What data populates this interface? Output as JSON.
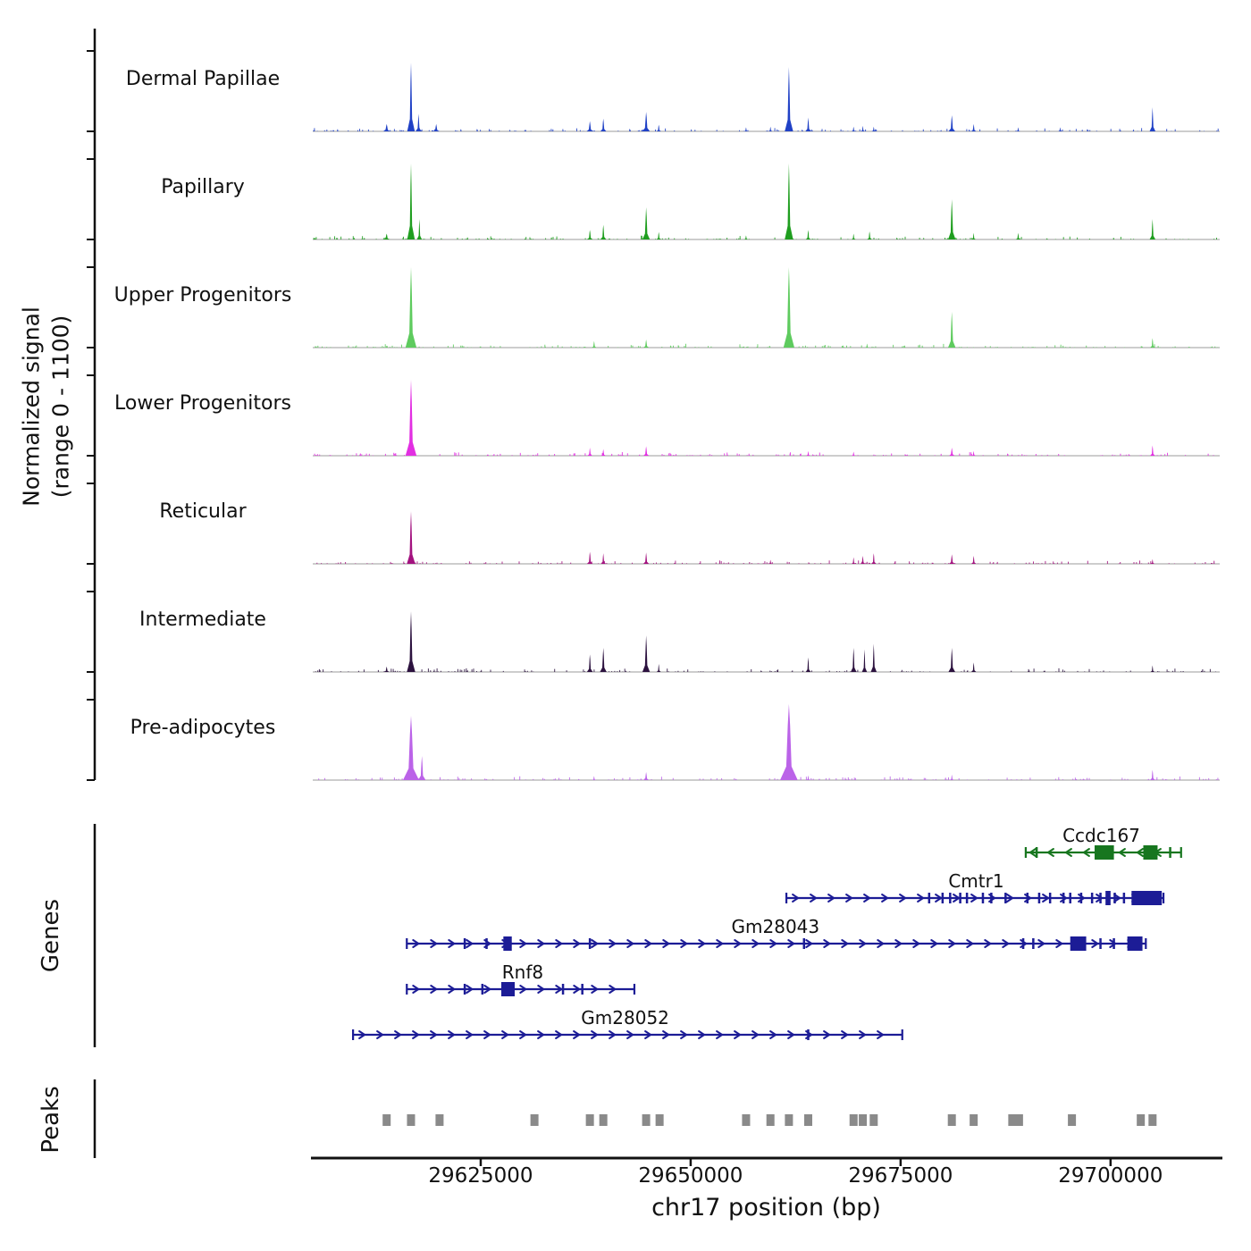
{
  "figure": {
    "ylabel_line1": "Normalized signal",
    "ylabel_line2": "(range 0 - 1100)",
    "xlabel": "chr17 position (bp)",
    "genes_label": "Genes",
    "peaks_label": "Peaks"
  },
  "chart_data": {
    "type": "area",
    "region": {
      "chrom": "chr17",
      "xmin": 29605000,
      "xmax": 29713000
    },
    "signal_range": [
      0,
      1100
    ],
    "xticks": [
      {
        "pos": 29625000,
        "label": "29625000"
      },
      {
        "pos": 29650000,
        "label": "29650000"
      },
      {
        "pos": 29675000,
        "label": "29675000"
      },
      {
        "pos": 29700000,
        "label": "29700000"
      }
    ],
    "tracks": [
      {
        "label": "Dermal Papillae",
        "color": "#2041c6",
        "peaks": [
          [
            29613800,
            100,
            900
          ],
          [
            29616700,
            940,
            900
          ],
          [
            29617600,
            240,
            700
          ],
          [
            29619700,
            100,
            800
          ],
          [
            29638000,
            140,
            800
          ],
          [
            29639600,
            175,
            700
          ],
          [
            29644700,
            265,
            900
          ],
          [
            29646200,
            90,
            600
          ],
          [
            29656600,
            55,
            500
          ],
          [
            29659500,
            65,
            500
          ],
          [
            29661700,
            880,
            1000
          ],
          [
            29664000,
            190,
            700
          ],
          [
            29669400,
            65,
            500
          ],
          [
            29670500,
            75,
            500
          ],
          [
            29671800,
            65,
            500
          ],
          [
            29681100,
            220,
            800
          ],
          [
            29683700,
            100,
            600
          ],
          [
            29689000,
            55,
            500
          ],
          [
            29694000,
            55,
            500
          ],
          [
            29705000,
            330,
            700
          ]
        ]
      },
      {
        "label": "Papillary",
        "color": "#1f9e1f",
        "peaks": [
          [
            29613800,
            80,
            800
          ],
          [
            29616700,
            1040,
            900
          ],
          [
            29617700,
            280,
            600
          ],
          [
            29638000,
            130,
            700
          ],
          [
            29639600,
            200,
            700
          ],
          [
            29644700,
            440,
            900
          ],
          [
            29646200,
            100,
            600
          ],
          [
            29656600,
            55,
            500
          ],
          [
            29661700,
            1040,
            1000
          ],
          [
            29664000,
            130,
            600
          ],
          [
            29669400,
            80,
            500
          ],
          [
            29671300,
            110,
            600
          ],
          [
            29681100,
            550,
            900
          ],
          [
            29683700,
            90,
            500
          ],
          [
            29689000,
            90,
            600
          ],
          [
            29705000,
            280,
            700
          ]
        ]
      },
      {
        "label": "Upper Progenitors",
        "color": "#5ecb5e",
        "peaks": [
          [
            29616700,
            1100,
            1300
          ],
          [
            29638500,
            90,
            600
          ],
          [
            29644700,
            110,
            700
          ],
          [
            29661700,
            1100,
            1300
          ],
          [
            29671000,
            55,
            500
          ],
          [
            29681100,
            490,
            900
          ],
          [
            29705000,
            130,
            600
          ]
        ]
      },
      {
        "label": "Lower Progenitors",
        "color": "#e22fe2",
        "peaks": [
          [
            29616700,
            1040,
            1300
          ],
          [
            29638000,
            110,
            600
          ],
          [
            29639600,
            90,
            600
          ],
          [
            29644700,
            130,
            700
          ],
          [
            29664000,
            65,
            500
          ],
          [
            29669400,
            55,
            500
          ],
          [
            29681100,
            110,
            700
          ],
          [
            29683700,
            65,
            500
          ],
          [
            29705000,
            140,
            600
          ]
        ]
      },
      {
        "label": "Reticular",
        "color": "#a3127f",
        "peaks": [
          [
            29616700,
            720,
            1000
          ],
          [
            29638000,
            165,
            700
          ],
          [
            29639600,
            145,
            600
          ],
          [
            29644700,
            155,
            700
          ],
          [
            29659500,
            55,
            500
          ],
          [
            29669400,
            90,
            500
          ],
          [
            29670500,
            110,
            600
          ],
          [
            29671800,
            145,
            600
          ],
          [
            29681100,
            130,
            700
          ],
          [
            29683700,
            110,
            600
          ],
          [
            29705000,
            65,
            500
          ]
        ]
      },
      {
        "label": "Intermediate",
        "color": "#2c123f",
        "peaks": [
          [
            29613800,
            75,
            700
          ],
          [
            29616700,
            830,
            1000
          ],
          [
            29638000,
            240,
            700
          ],
          [
            29639600,
            330,
            800
          ],
          [
            29644700,
            500,
            900
          ],
          [
            29646200,
            110,
            500
          ],
          [
            29664000,
            200,
            600
          ],
          [
            29669400,
            330,
            700
          ],
          [
            29670700,
            310,
            600
          ],
          [
            29671800,
            385,
            700
          ],
          [
            29681100,
            330,
            800
          ],
          [
            29683700,
            130,
            600
          ],
          [
            29705000,
            90,
            500
          ]
        ]
      },
      {
        "label": "Pre-adipocytes",
        "color": "#bb63e8",
        "peaks": [
          [
            29616700,
            880,
            1900
          ],
          [
            29618000,
            330,
            900
          ],
          [
            29638500,
            55,
            500
          ],
          [
            29644700,
            110,
            700
          ],
          [
            29661700,
            1040,
            2100
          ],
          [
            29664000,
            65,
            500
          ],
          [
            29681100,
            75,
            500
          ],
          [
            29705000,
            140,
            600
          ]
        ]
      }
    ],
    "genes": [
      {
        "name": "Ccdc167",
        "color": "#17761f",
        "strand": "-",
        "start": 29689900,
        "end": 29708400,
        "exons": [
          [
            29698100,
            29700400
          ],
          [
            29703900,
            29705600
          ]
        ],
        "ticks": [
          29691200,
          29707100
        ],
        "label_pos": 29698900
      },
      {
        "name": "Cmtr1",
        "color": "#1c1c96",
        "strand": "+",
        "start": 29661400,
        "end": 29706300,
        "exons": [
          [
            29699400,
            29700000
          ],
          [
            29702500,
            29706100
          ]
        ],
        "ticks": [
          29678400,
          29680000,
          29680900,
          29682100,
          29682900,
          29684800,
          29685800,
          29687500,
          29690100,
          29691500,
          29692800,
          29694400,
          29695200,
          29696500,
          29697800,
          29698800,
          29700500,
          29701600
        ],
        "label_pos": 29684000
      },
      {
        "name": "Gm28043",
        "color": "#1c1c96",
        "strand": "+",
        "start": 29616200,
        "end": 29704200,
        "exons": [
          [
            29627700,
            29628700
          ],
          [
            29695200,
            29697100
          ],
          [
            29702000,
            29703800
          ]
        ],
        "ticks": [
          29623100,
          29625700,
          29638000,
          29663500,
          29689600,
          29690800,
          29698800,
          29700400
        ],
        "label_pos": 29660100
      },
      {
        "name": "Rnf8",
        "color": "#1c1c96",
        "strand": "+",
        "start": 29616200,
        "end": 29643300,
        "exons": [
          [
            29627450,
            29629050
          ]
        ],
        "ticks": [
          29623100,
          29625200,
          29634800,
          29637100
        ],
        "label_pos": 29630000
      },
      {
        "name": "Gm28052",
        "color": "#1c1c96",
        "strand": "+",
        "start": 29609800,
        "end": 29675200,
        "exons": [],
        "ticks": [
          29664000
        ],
        "label_pos": 29642200
      }
    ],
    "peak_calls": [
      29613800,
      29616700,
      29620100,
      29631400,
      29638000,
      29639600,
      29644700,
      29646300,
      29656600,
      29659500,
      29661700,
      29664000,
      29669400,
      29670500,
      29671800,
      29681100,
      29683700,
      29688300,
      29689100,
      29695400,
      29703600,
      29705000
    ],
    "peak_color": "#8a8a8a"
  }
}
